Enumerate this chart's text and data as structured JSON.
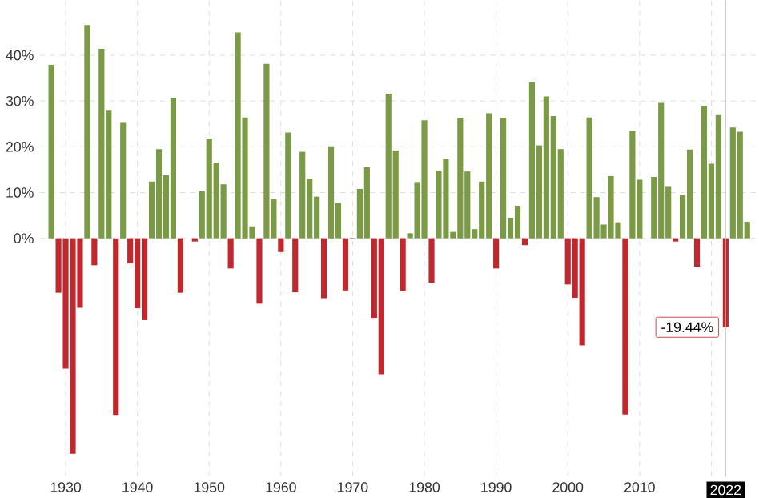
{
  "chart_data": {
    "type": "bar",
    "x": [
      1928,
      1929,
      1930,
      1931,
      1932,
      1933,
      1934,
      1935,
      1936,
      1937,
      1938,
      1939,
      1940,
      1941,
      1942,
      1943,
      1944,
      1945,
      1946,
      1947,
      1948,
      1949,
      1950,
      1951,
      1952,
      1953,
      1954,
      1955,
      1956,
      1957,
      1958,
      1959,
      1960,
      1961,
      1962,
      1963,
      1964,
      1965,
      1966,
      1967,
      1968,
      1969,
      1970,
      1971,
      1972,
      1973,
      1974,
      1975,
      1976,
      1977,
      1978,
      1979,
      1980,
      1981,
      1982,
      1983,
      1984,
      1985,
      1986,
      1987,
      1988,
      1989,
      1990,
      1991,
      1992,
      1993,
      1994,
      1995,
      1996,
      1997,
      1998,
      1999,
      2000,
      2001,
      2002,
      2003,
      2004,
      2005,
      2006,
      2007,
      2008,
      2009,
      2010,
      2011,
      2012,
      2013,
      2014,
      2015,
      2016,
      2017,
      2018,
      2019,
      2020,
      2021,
      2022,
      2023,
      2024,
      2025
    ],
    "values": [
      37.9,
      -11.9,
      -28.5,
      -47.1,
      -15.2,
      46.6,
      -5.9,
      41.4,
      27.9,
      -38.6,
      25.2,
      -5.5,
      -15.3,
      -17.9,
      12.4,
      19.5,
      13.8,
      30.7,
      -11.9,
      0.0,
      -0.7,
      10.3,
      21.8,
      16.5,
      11.8,
      -6.6,
      45.0,
      26.4,
      2.6,
      -14.3,
      38.1,
      8.5,
      -3.0,
      23.1,
      -11.8,
      18.9,
      13.0,
      9.1,
      -13.1,
      20.1,
      7.7,
      -11.4,
      0.1,
      10.8,
      15.6,
      -17.4,
      -29.7,
      31.6,
      19.2,
      -11.5,
      1.1,
      12.3,
      25.8,
      -9.7,
      14.8,
      17.3,
      1.4,
      26.3,
      14.6,
      2.0,
      12.4,
      27.3,
      -6.6,
      26.3,
      4.5,
      7.1,
      -1.5,
      34.1,
      20.3,
      31.0,
      26.7,
      19.5,
      -10.1,
      -13.0,
      -23.4,
      26.4,
      9.0,
      3.0,
      13.6,
      3.5,
      -38.5,
      23.5,
      12.8,
      0.0,
      13.4,
      29.6,
      11.4,
      -0.7,
      9.5,
      19.4,
      -6.2,
      28.9,
      16.3,
      26.9,
      -19.44,
      24.2,
      23.3,
      3.6
    ],
    "colors": [
      "#7a9a45",
      "#c0282d",
      "#c0282d",
      "#c0282d",
      "#c0282d",
      "#7a9a45",
      "#c0282d",
      "#7a9a45",
      "#7a9a45",
      "#c0282d",
      "#7a9a45",
      "#c0282d",
      "#c0282d",
      "#c0282d",
      "#7a9a45",
      "#7a9a45",
      "#7a9a45",
      "#7a9a45",
      "#c0282d",
      "#7a9a45",
      "#c0282d",
      "#7a9a45",
      "#7a9a45",
      "#7a9a45",
      "#7a9a45",
      "#c0282d",
      "#7a9a45",
      "#7a9a45",
      "#7a9a45",
      "#c0282d",
      "#7a9a45",
      "#7a9a45",
      "#c0282d",
      "#7a9a45",
      "#c0282d",
      "#7a9a45",
      "#7a9a45",
      "#7a9a45",
      "#c0282d",
      "#7a9a45",
      "#7a9a45",
      "#c0282d",
      "#7a9a45",
      "#7a9a45",
      "#7a9a45",
      "#c0282d",
      "#c0282d",
      "#7a9a45",
      "#7a9a45",
      "#c0282d",
      "#7a9a45",
      "#7a9a45",
      "#7a9a45",
      "#c0282d",
      "#7a9a45",
      "#7a9a45",
      "#7a9a45",
      "#7a9a45",
      "#7a9a45",
      "#7a9a45",
      "#7a9a45",
      "#7a9a45",
      "#c0282d",
      "#7a9a45",
      "#7a9a45",
      "#7a9a45",
      "#c0282d",
      "#7a9a45",
      "#7a9a45",
      "#7a9a45",
      "#7a9a45",
      "#7a9a45",
      "#c0282d",
      "#c0282d",
      "#c0282d",
      "#7a9a45",
      "#7a9a45",
      "#7a9a45",
      "#7a9a45",
      "#7a9a45",
      "#c0282d",
      "#7a9a45",
      "#7a9a45",
      "#7a9a45",
      "#7a9a45",
      "#7a9a45",
      "#7a9a45",
      "#c0282d",
      "#7a9a45",
      "#7a9a45",
      "#c0282d",
      "#7a9a45",
      "#7a9a45",
      "#7a9a45",
      "#c0282d",
      "#7a9a45",
      "#7a9a45",
      "#7a9a45"
    ],
    "xlim": [
      1926.4,
      2026.6
    ],
    "ylim": [
      -52,
      52
    ],
    "xticks": [
      1930,
      1940,
      1950,
      1960,
      1970,
      1980,
      1990,
      2000,
      2010,
      {
        "value": 2020,
        "label": null
      }
    ],
    "yticks": [
      {
        "value": 0,
        "label": "0%"
      },
      {
        "value": 10,
        "label": "10%"
      },
      {
        "value": 20,
        "label": "20%"
      },
      {
        "value": 30,
        "label": "30%"
      },
      {
        "value": 40,
        "label": "40%"
      }
    ],
    "grid": true,
    "ref_lines": [
      {
        "axis": "x",
        "value": 2022,
        "label": "2022",
        "color": "#bbbbbb"
      }
    ],
    "annotations": [
      {
        "text": "-19.44%",
        "x": 2022,
        "y": -19.44
      }
    ]
  }
}
